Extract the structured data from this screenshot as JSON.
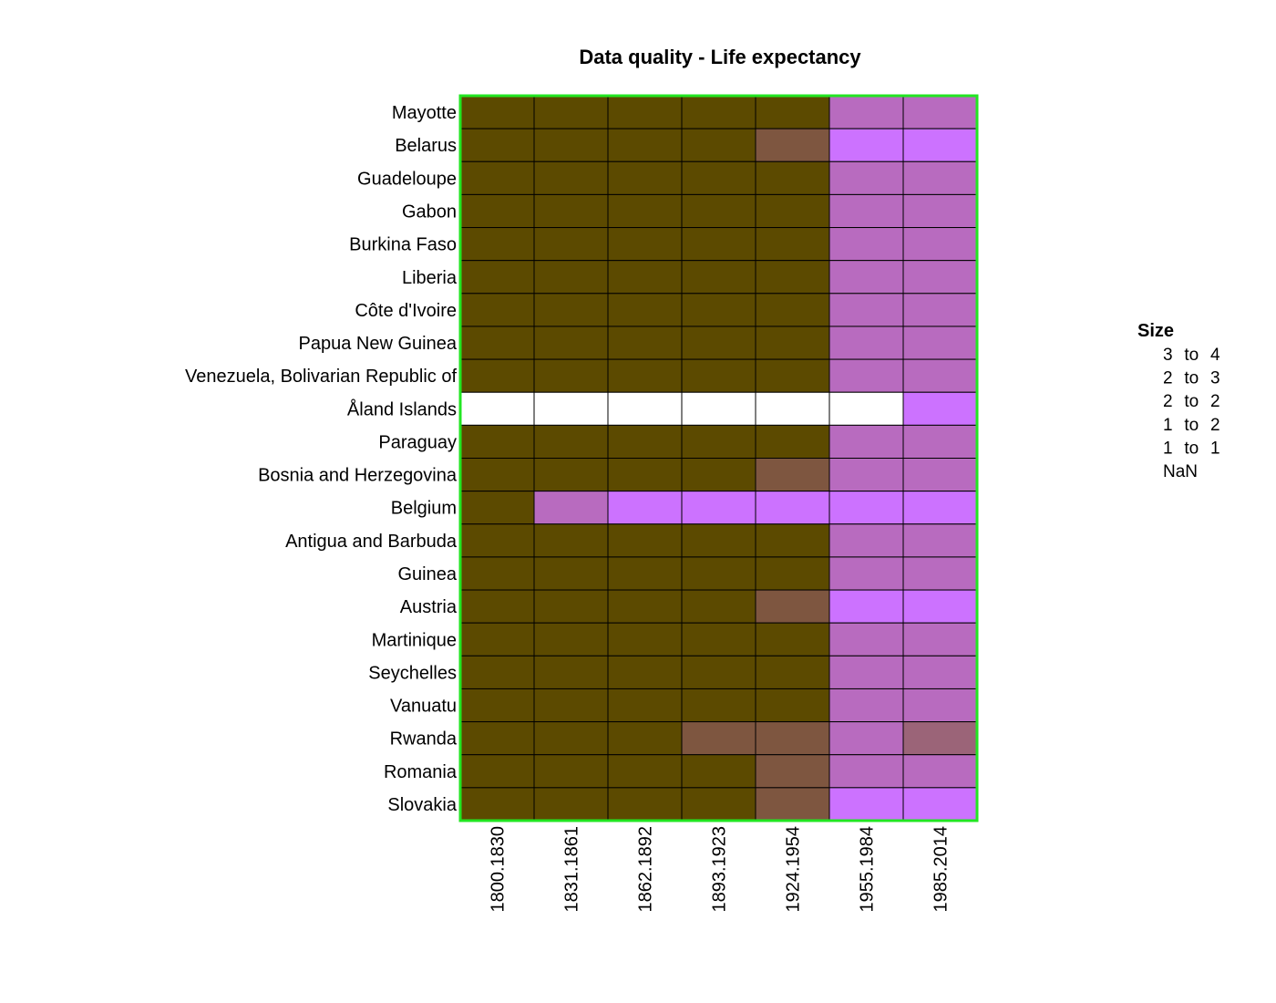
{
  "chart_data": {
    "type": "heatmap",
    "title": "Data quality - Life expectancy",
    "xlabel": "",
    "ylabel": "",
    "columns": [
      "1800.1830",
      "1831.1861",
      "1862.1892",
      "1893.1923",
      "1924.1954",
      "1955.1984",
      "1985.2014"
    ],
    "rows": [
      "Mayotte",
      "Belarus",
      "Guadeloupe",
      "Gabon",
      "Burkina Faso",
      "Liberia",
      "Côte d'Ivoire",
      "Papua New Guinea",
      "Venezuela, Bolivarian Republic of",
      "Åland Islands",
      "Paraguay",
      "Bosnia and Herzegovina",
      "Belgium",
      "Antigua and Barbuda",
      "Guinea",
      "Austria",
      "Martinique",
      "Seychelles",
      "Vanuatu",
      "Rwanda",
      "Romania",
      "Slovakia"
    ],
    "values": [
      [
        1,
        1,
        1,
        1,
        1,
        3,
        3
      ],
      [
        1,
        1,
        1,
        1,
        1.5,
        4,
        4
      ],
      [
        1,
        1,
        1,
        1,
        1,
        3,
        3
      ],
      [
        1,
        1,
        1,
        1,
        1,
        3,
        3
      ],
      [
        1,
        1,
        1,
        1,
        1,
        3,
        3
      ],
      [
        1,
        1,
        1,
        1,
        1,
        3,
        3
      ],
      [
        1,
        1,
        1,
        1,
        1,
        3,
        3
      ],
      [
        1,
        1,
        1,
        1,
        1,
        3,
        3
      ],
      [
        1,
        1,
        1,
        1,
        1,
        3,
        3
      ],
      [
        null,
        null,
        null,
        null,
        null,
        null,
        4
      ],
      [
        1,
        1,
        1,
        1,
        1,
        3,
        3
      ],
      [
        1,
        1,
        1,
        1,
        1.5,
        3,
        3
      ],
      [
        1,
        3,
        4,
        4,
        4,
        4,
        4
      ],
      [
        1,
        1,
        1,
        1,
        1,
        3,
        3
      ],
      [
        1,
        1,
        1,
        1,
        1,
        3,
        3
      ],
      [
        1,
        1,
        1,
        1,
        1.5,
        4,
        4
      ],
      [
        1,
        1,
        1,
        1,
        1,
        3,
        3
      ],
      [
        1,
        1,
        1,
        1,
        1,
        3,
        3
      ],
      [
        1,
        1,
        1,
        1,
        1,
        3,
        3
      ],
      [
        1,
        1,
        1,
        1.5,
        1.5,
        3,
        2
      ],
      [
        1,
        1,
        1,
        1,
        1.5,
        3,
        3
      ],
      [
        1,
        1,
        1,
        1,
        1.5,
        4,
        4
      ]
    ],
    "legend": {
      "title": "Size",
      "placement": "right",
      "items": [
        "3 to 4",
        "2 to 3",
        "2 to 2",
        "1 to 2",
        "1 to 1",
        "NaN"
      ]
    },
    "color_scale": [
      {
        "value": 1,
        "color": "#5c4a00"
      },
      {
        "value": 1.5,
        "color": "#7e5640"
      },
      {
        "value": 2,
        "color": "#9b6478"
      },
      {
        "value": 3,
        "color": "#b86bbf"
      },
      {
        "value": 4,
        "color": "#cc72ff"
      }
    ],
    "nan_color": "#ffffff",
    "grid_color": "#000000",
    "border_color": "#22e622",
    "grid": true
  }
}
